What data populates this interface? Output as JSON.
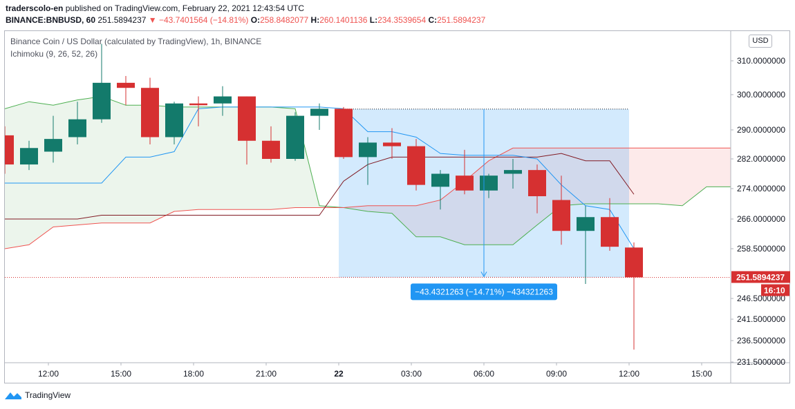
{
  "header": {
    "author": "traderscolo-en",
    "published_text": " published on TradingView.com, February 22, 2021 12:43:54 UTC",
    "symbol": "BINANCE:BNBUSD, 60",
    "last": "251.5894237",
    "change": "▼ −43.7401564 (−14.81%)",
    "o_label": "O:",
    "o": "258.8482077",
    "h_label": "H:",
    "h": "260.1401136",
    "l_label": "L:",
    "l": "234.3539654",
    "c_label": "C:",
    "c": "251.5894237"
  },
  "legend": {
    "title": "Binance Coin / US Dollar (calculated by TradingView), 1h, BINANCE",
    "indicator": "Ichimoku (9, 26, 52, 26)"
  },
  "currency": "USD",
  "price_label": "251.5894237",
  "countdown_label": "16:10",
  "measure_label": "−43.4321263 (−14.71%) −434321263",
  "footer": {
    "brand": "TradingView"
  },
  "colors": {
    "up": "#26a69a",
    "up_body": "#137a6b",
    "down": "#d63031",
    "tenkan": "#2196f3",
    "kijun": "#801922",
    "chikou": "#43a047",
    "span_a": "#4caf50",
    "span_b": "#ef5350",
    "measure": "#2196f3"
  },
  "chart_data": {
    "type": "candlestick",
    "y_ticks": [
      {
        "v": 310,
        "label": "310.0000000"
      },
      {
        "v": 300,
        "label": "300.0000000"
      },
      {
        "v": 290,
        "label": "290.0000000"
      },
      {
        "v": 282,
        "label": "282.0000000"
      },
      {
        "v": 274,
        "label": "274.0000000"
      },
      {
        "v": 266,
        "label": "266.0000000"
      },
      {
        "v": 258.5,
        "label": "258.5000000"
      },
      {
        "v": 246.5,
        "label": "246.5000000"
      },
      {
        "v": 241.5,
        "label": "241.5000000"
      },
      {
        "v": 236.5,
        "label": "236.5000000"
      },
      {
        "v": 231.5,
        "label": "231.5000000"
      }
    ],
    "x_ticks": [
      {
        "i": 1.8,
        "label": "12:00"
      },
      {
        "i": 4.8,
        "label": "15:00"
      },
      {
        "i": 7.8,
        "label": "18:00"
      },
      {
        "i": 10.8,
        "label": "21:00"
      },
      {
        "i": 13.8,
        "label": "22"
      },
      {
        "i": 16.8,
        "label": "03:00"
      },
      {
        "i": 19.8,
        "label": "06:00"
      },
      {
        "i": 22.8,
        "label": "09:00"
      },
      {
        "i": 25.8,
        "label": "12:00"
      },
      {
        "i": 28.8,
        "label": "15:00"
      }
    ],
    "candles": [
      {
        "o": 288.5,
        "h": 291.0,
        "l": 278.0,
        "c": 280.5
      },
      {
        "o": 280.5,
        "h": 287.0,
        "l": 279.0,
        "c": 285.0
      },
      {
        "o": 284.0,
        "h": 294.0,
        "l": 281.0,
        "c": 287.5
      },
      {
        "o": 288.0,
        "h": 298.0,
        "l": 286.0,
        "c": 293.0
      },
      {
        "o": 293.0,
        "h": 315.0,
        "l": 292.0,
        "c": 303.5
      },
      {
        "o": 303.5,
        "h": 305.5,
        "l": 297.0,
        "c": 302.0
      },
      {
        "o": 302.0,
        "h": 305.0,
        "l": 286.0,
        "c": 288.0
      },
      {
        "o": 288.0,
        "h": 298.0,
        "l": 286.0,
        "c": 297.5
      },
      {
        "o": 297.5,
        "h": 299.5,
        "l": 291.0,
        "c": 297.0
      },
      {
        "o": 297.5,
        "h": 302.5,
        "l": 294.0,
        "c": 299.5
      },
      {
        "o": 299.5,
        "h": 299.5,
        "l": 280.5,
        "c": 287.0
      },
      {
        "o": 287.0,
        "h": 291.0,
        "l": 281.0,
        "c": 282.0
      },
      {
        "o": 282.0,
        "h": 295.0,
        "l": 281.5,
        "c": 294.0
      },
      {
        "o": 294.0,
        "h": 297.5,
        "l": 290.0,
        "c": 296.0
      },
      {
        "o": 296.0,
        "h": 296.5,
        "l": 282.0,
        "c": 282.5
      },
      {
        "o": 282.5,
        "h": 288.0,
        "l": 275.0,
        "c": 286.5
      },
      {
        "o": 286.5,
        "h": 290.5,
        "l": 282.0,
        "c": 285.5
      },
      {
        "o": 285.5,
        "h": 287.5,
        "l": 273.5,
        "c": 275.0
      },
      {
        "o": 274.5,
        "h": 279.0,
        "l": 268.5,
        "c": 278.0
      },
      {
        "o": 277.5,
        "h": 284.5,
        "l": 272.5,
        "c": 273.5
      },
      {
        "o": 273.5,
        "h": 278.0,
        "l": 271.5,
        "c": 277.5
      },
      {
        "o": 278.0,
        "h": 282.0,
        "l": 274.0,
        "c": 279.0
      },
      {
        "o": 279.0,
        "h": 280.5,
        "l": 267.5,
        "c": 272.0
      },
      {
        "o": 271.0,
        "h": 277.5,
        "l": 259.5,
        "c": 263.0
      },
      {
        "o": 263.0,
        "h": 269.5,
        "l": 250.0,
        "c": 266.5
      },
      {
        "o": 266.5,
        "h": 271.5,
        "l": 258.0,
        "c": 259.0
      },
      {
        "o": 258.8,
        "h": 260.1,
        "l": 234.4,
        "c": 251.6
      }
    ],
    "tenkan": {
      "start": 0,
      "values": [
        275.5,
        275.5,
        275.5,
        275.5,
        275.5,
        282.5,
        282.5,
        284.0,
        296.0,
        296.5,
        296.5,
        296.5,
        296.5,
        296.5,
        296.0,
        289.5,
        289.5,
        288.0,
        283.5,
        283.0,
        283.0,
        283.0,
        282.0,
        275.0,
        269.5,
        268.5,
        258.5
      ]
    },
    "kijun": {
      "start": 0,
      "values": [
        266.0,
        266.0,
        266.0,
        266.0,
        267.0,
        267.0,
        267.0,
        267.0,
        267.0,
        267.0,
        267.0,
        267.0,
        267.0,
        267.0,
        276.0,
        280.5,
        282.5,
        282.5,
        282.5,
        282.5,
        282.5,
        282.5,
        282.5,
        283.5,
        281.5,
        281.5,
        272.5
      ]
    },
    "span_a": {
      "start": 0,
      "values": [
        296.0,
        298.0,
        297.0,
        298.5,
        299.5,
        297.0,
        297.0,
        296.5,
        296.5,
        296.5,
        296.5,
        296.5,
        296.0,
        269.5,
        269.0,
        268.0,
        267.5,
        261.5,
        261.5,
        259.5,
        259.5,
        259.5,
        264.5,
        269.5,
        270.0,
        270.0,
        270.0,
        270.0,
        269.5,
        274.5,
        274.5
      ]
    },
    "span_b": {
      "start": 0,
      "values": [
        258.5,
        259.5,
        264.0,
        264.5,
        265.0,
        265.0,
        265.0,
        268.0,
        268.5,
        268.5,
        268.5,
        268.5,
        269.0,
        269.0,
        269.0,
        269.5,
        269.5,
        269.5,
        271.0,
        276.0,
        281.5,
        285.0,
        285.0,
        285.0,
        285.0,
        285.0,
        285.0,
        285.0,
        285.0,
        285.0,
        285.0
      ]
    },
    "chikou": {
      "start": -1,
      "values": [
        258.5,
        251.0
      ]
    },
    "measure": {
      "from_i": 13.8,
      "to_i": 25.8,
      "top": 295.9,
      "bottom": 251.6
    },
    "last_price": 251.5894237
  }
}
